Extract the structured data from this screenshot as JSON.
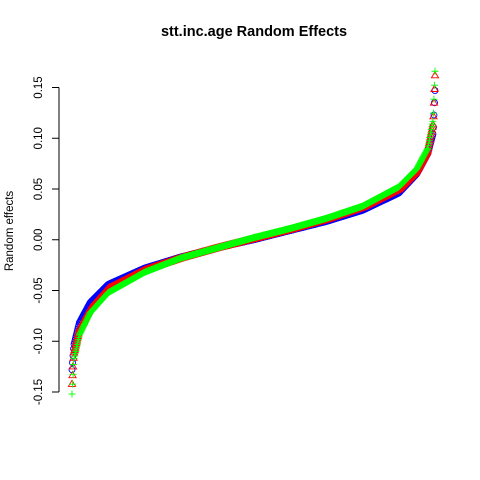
{
  "chart_data": {
    "type": "scatter",
    "title": "stt.inc.age Random Effects",
    "xlabel": "",
    "ylabel": "Random effects",
    "ylim": [
      -0.155,
      0.17
    ],
    "y_ticks": [
      "-0.15",
      "-0.10",
      "-0.05",
      "0.00",
      "0.05",
      "0.10",
      "0.15"
    ],
    "y_tick_values": [
      -0.15,
      -0.1,
      -0.05,
      0.0,
      0.05,
      0.1,
      0.15
    ],
    "n_points_per_series": 700,
    "series": [
      {
        "marker": "circle",
        "color": "#0000ff",
        "quantile_curve": {
          "p": [
            0.0,
            0.005,
            0.02,
            0.05,
            0.1,
            0.2,
            0.3,
            0.4,
            0.5,
            0.6,
            0.7,
            0.8,
            0.9,
            0.95,
            0.98,
            0.995,
            1.0
          ],
          "y": [
            -0.128,
            -0.104,
            -0.082,
            -0.062,
            -0.044,
            -0.028,
            -0.017,
            -0.008,
            0.0,
            0.009,
            0.018,
            0.029,
            0.046,
            0.065,
            0.085,
            0.105,
            0.147
          ]
        }
      },
      {
        "marker": "triangle",
        "color": "#ff0000",
        "quantile_curve": {
          "p": [
            0.0,
            0.005,
            0.02,
            0.05,
            0.1,
            0.2,
            0.3,
            0.4,
            0.5,
            0.6,
            0.7,
            0.8,
            0.9,
            0.95,
            0.98,
            0.995,
            1.0
          ],
          "y": [
            -0.142,
            -0.112,
            -0.088,
            -0.068,
            -0.048,
            -0.03,
            -0.018,
            -0.008,
            0.001,
            0.01,
            0.02,
            0.032,
            0.05,
            0.068,
            0.088,
            0.115,
            0.162
          ]
        }
      },
      {
        "marker": "plus",
        "color": "#00ff00",
        "quantile_curve": {
          "p": [
            0.0,
            0.005,
            0.02,
            0.05,
            0.1,
            0.2,
            0.3,
            0.4,
            0.5,
            0.6,
            0.7,
            0.8,
            0.9,
            0.95,
            0.98,
            0.995,
            1.0
          ],
          "y": [
            -0.152,
            -0.118,
            -0.094,
            -0.072,
            -0.052,
            -0.032,
            -0.018,
            -0.008,
            0.002,
            0.011,
            0.021,
            0.033,
            0.052,
            0.07,
            0.09,
            0.118,
            0.166
          ]
        }
      }
    ]
  }
}
